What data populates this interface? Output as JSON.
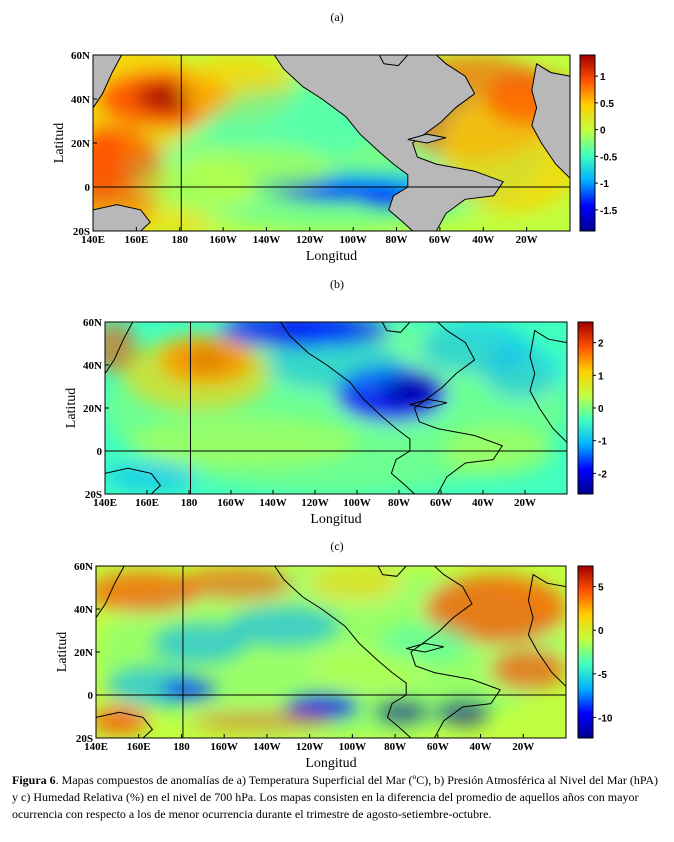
{
  "panels": [
    {
      "label": "(a)",
      "xlabel": "Longitud",
      "ylabel": "Latitud",
      "lat_ticks": [
        "60N",
        "40N",
        "20N",
        "0",
        "20S"
      ],
      "lon_ticks": [
        "140E",
        "160E",
        "180",
        "160W",
        "140W",
        "120W",
        "100W",
        "80W",
        "60W",
        "40W",
        "20W"
      ],
      "colorbar_ticks": [
        "1",
        "0.5",
        "0",
        "-0.5",
        "-1",
        "-1.5"
      ],
      "land_masked": true
    },
    {
      "label": "(b)",
      "xlabel": "Longitud",
      "ylabel": "Latitud",
      "lat_ticks": [
        "60N",
        "40N",
        "20N",
        "0",
        "20S"
      ],
      "lon_ticks": [
        "140E",
        "160E",
        "180",
        "160W",
        "140W",
        "120W",
        "100W",
        "80W",
        "60W",
        "40W",
        "20W"
      ],
      "colorbar_ticks": [
        "2",
        "1",
        "0",
        "-1",
        "-2"
      ],
      "land_masked": false
    },
    {
      "label": "(c)",
      "xlabel": "Longitud",
      "ylabel": "Latitud",
      "lat_ticks": [
        "60N",
        "40N",
        "20N",
        "0",
        "20S"
      ],
      "lon_ticks": [
        "140E",
        "160E",
        "180",
        "160W",
        "140W",
        "120W",
        "100W",
        "80W",
        "60W",
        "40W",
        "20W"
      ],
      "colorbar_ticks": [
        "5",
        "0",
        "-5",
        "-10"
      ],
      "land_masked": false
    }
  ],
  "colors": {
    "jet": [
      "#00008f",
      "#0000ff",
      "#00b0ff",
      "#40ffc0",
      "#c0ff40",
      "#ffd000",
      "#ff5000",
      "#a00000"
    ],
    "land": "#b8b8b8",
    "coast": "#000000"
  },
  "caption": {
    "bold": "Figura 6",
    "text": ". Mapas compuestos de anomalías de a) Temperatura Superficial del Mar (ºC), b) Presión Atmosférica al Nivel del Mar (hPA) y c) Humedad Relativa (%) en el nivel de 700 hPa. Los mapas consisten en la diferencia del promedio de aquellos años con mayor ocurrencia con respecto a los de menor ocurrencia durante el trimestre de agosto-setiembre-octubre."
  }
}
